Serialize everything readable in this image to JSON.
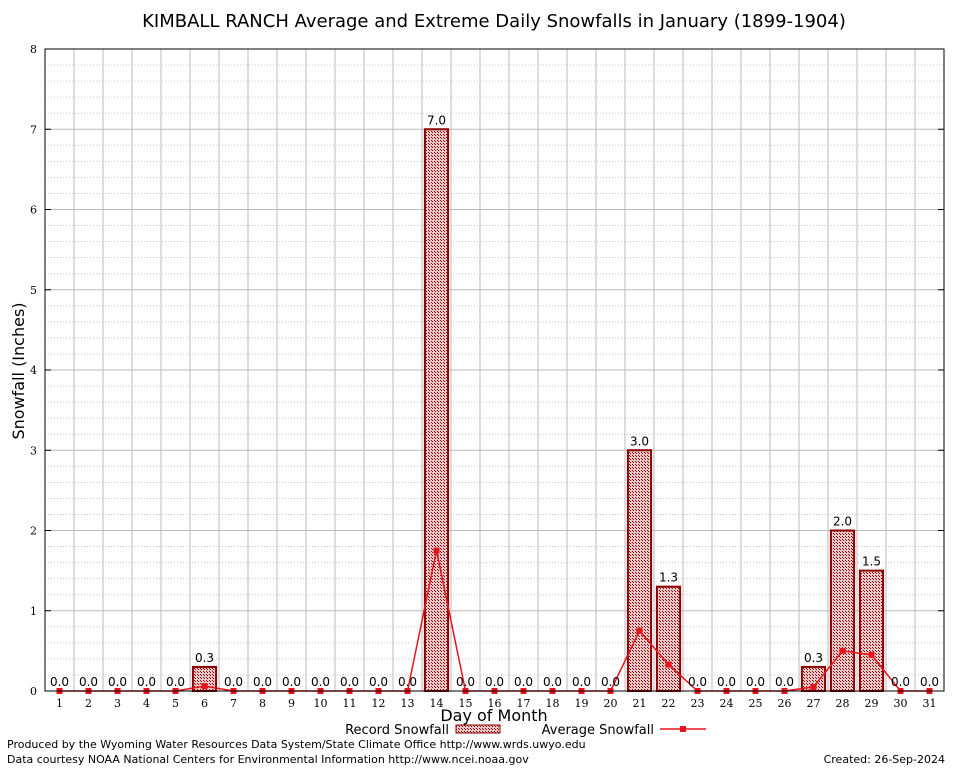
{
  "chart_data": {
    "type": "bar",
    "title": "KIMBALL RANCH Average and Extreme Daily Snowfalls in January (1899-1904)",
    "xlabel": "Day of Month",
    "ylabel": "Snowfall (Inches)",
    "ylim": [
      0,
      8
    ],
    "xlim": [
      0.5,
      31.5
    ],
    "grid": true,
    "categories": [
      "1",
      "2",
      "3",
      "4",
      "5",
      "6",
      "7",
      "8",
      "9",
      "10",
      "11",
      "12",
      "13",
      "14",
      "15",
      "16",
      "17",
      "18",
      "19",
      "20",
      "21",
      "22",
      "23",
      "24",
      "25",
      "26",
      "27",
      "28",
      "29",
      "30",
      "31"
    ],
    "y_ticks": [
      "0",
      "1",
      "2",
      "3",
      "4",
      "5",
      "6",
      "7",
      "8"
    ],
    "legend_position": "bottom",
    "series": [
      {
        "name": "Record Snowfall",
        "kind": "bar",
        "color": "#8b0000",
        "values": [
          0,
          0,
          0,
          0,
          0,
          0.3,
          0,
          0,
          0,
          0,
          0,
          0,
          0,
          7.0,
          0,
          0,
          0,
          0,
          0,
          0,
          3.0,
          1.3,
          0,
          0,
          0,
          0,
          0.3,
          2.0,
          1.5,
          0,
          0
        ],
        "labels": [
          "0.0",
          "0.0",
          "0.0",
          "0.0",
          "0.0",
          "0.3",
          "0.0",
          "0.0",
          "0.0",
          "0.0",
          "0.0",
          "0.0",
          "0.0",
          "7.0",
          "0.0",
          "0.0",
          "0.0",
          "0.0",
          "0.0",
          "0.0",
          "3.0",
          "1.3",
          "0.0",
          "0.0",
          "0.0",
          "0.0",
          "0.3",
          "2.0",
          "1.5",
          "0.0",
          "0.0"
        ]
      },
      {
        "name": "Average Snowfall",
        "kind": "line",
        "color": "#e8141c",
        "values": [
          0,
          0,
          0,
          0,
          0,
          0.06,
          0,
          0,
          0,
          0,
          0,
          0,
          0,
          1.75,
          0,
          0,
          0,
          0,
          0,
          0,
          0.75,
          0.33,
          0,
          0,
          0,
          0,
          0.05,
          0.5,
          0.45,
          0,
          0
        ]
      }
    ]
  },
  "footer": {
    "produced_by": "Produced by the Wyoming Water Resources Data System/State Climate Office http://www.wrds.uwyo.edu",
    "courtesy": "Data courtesy NOAA National Centers for Environmental Information http://www.ncei.noaa.gov",
    "created": "Created:  26-Sep-2024"
  }
}
